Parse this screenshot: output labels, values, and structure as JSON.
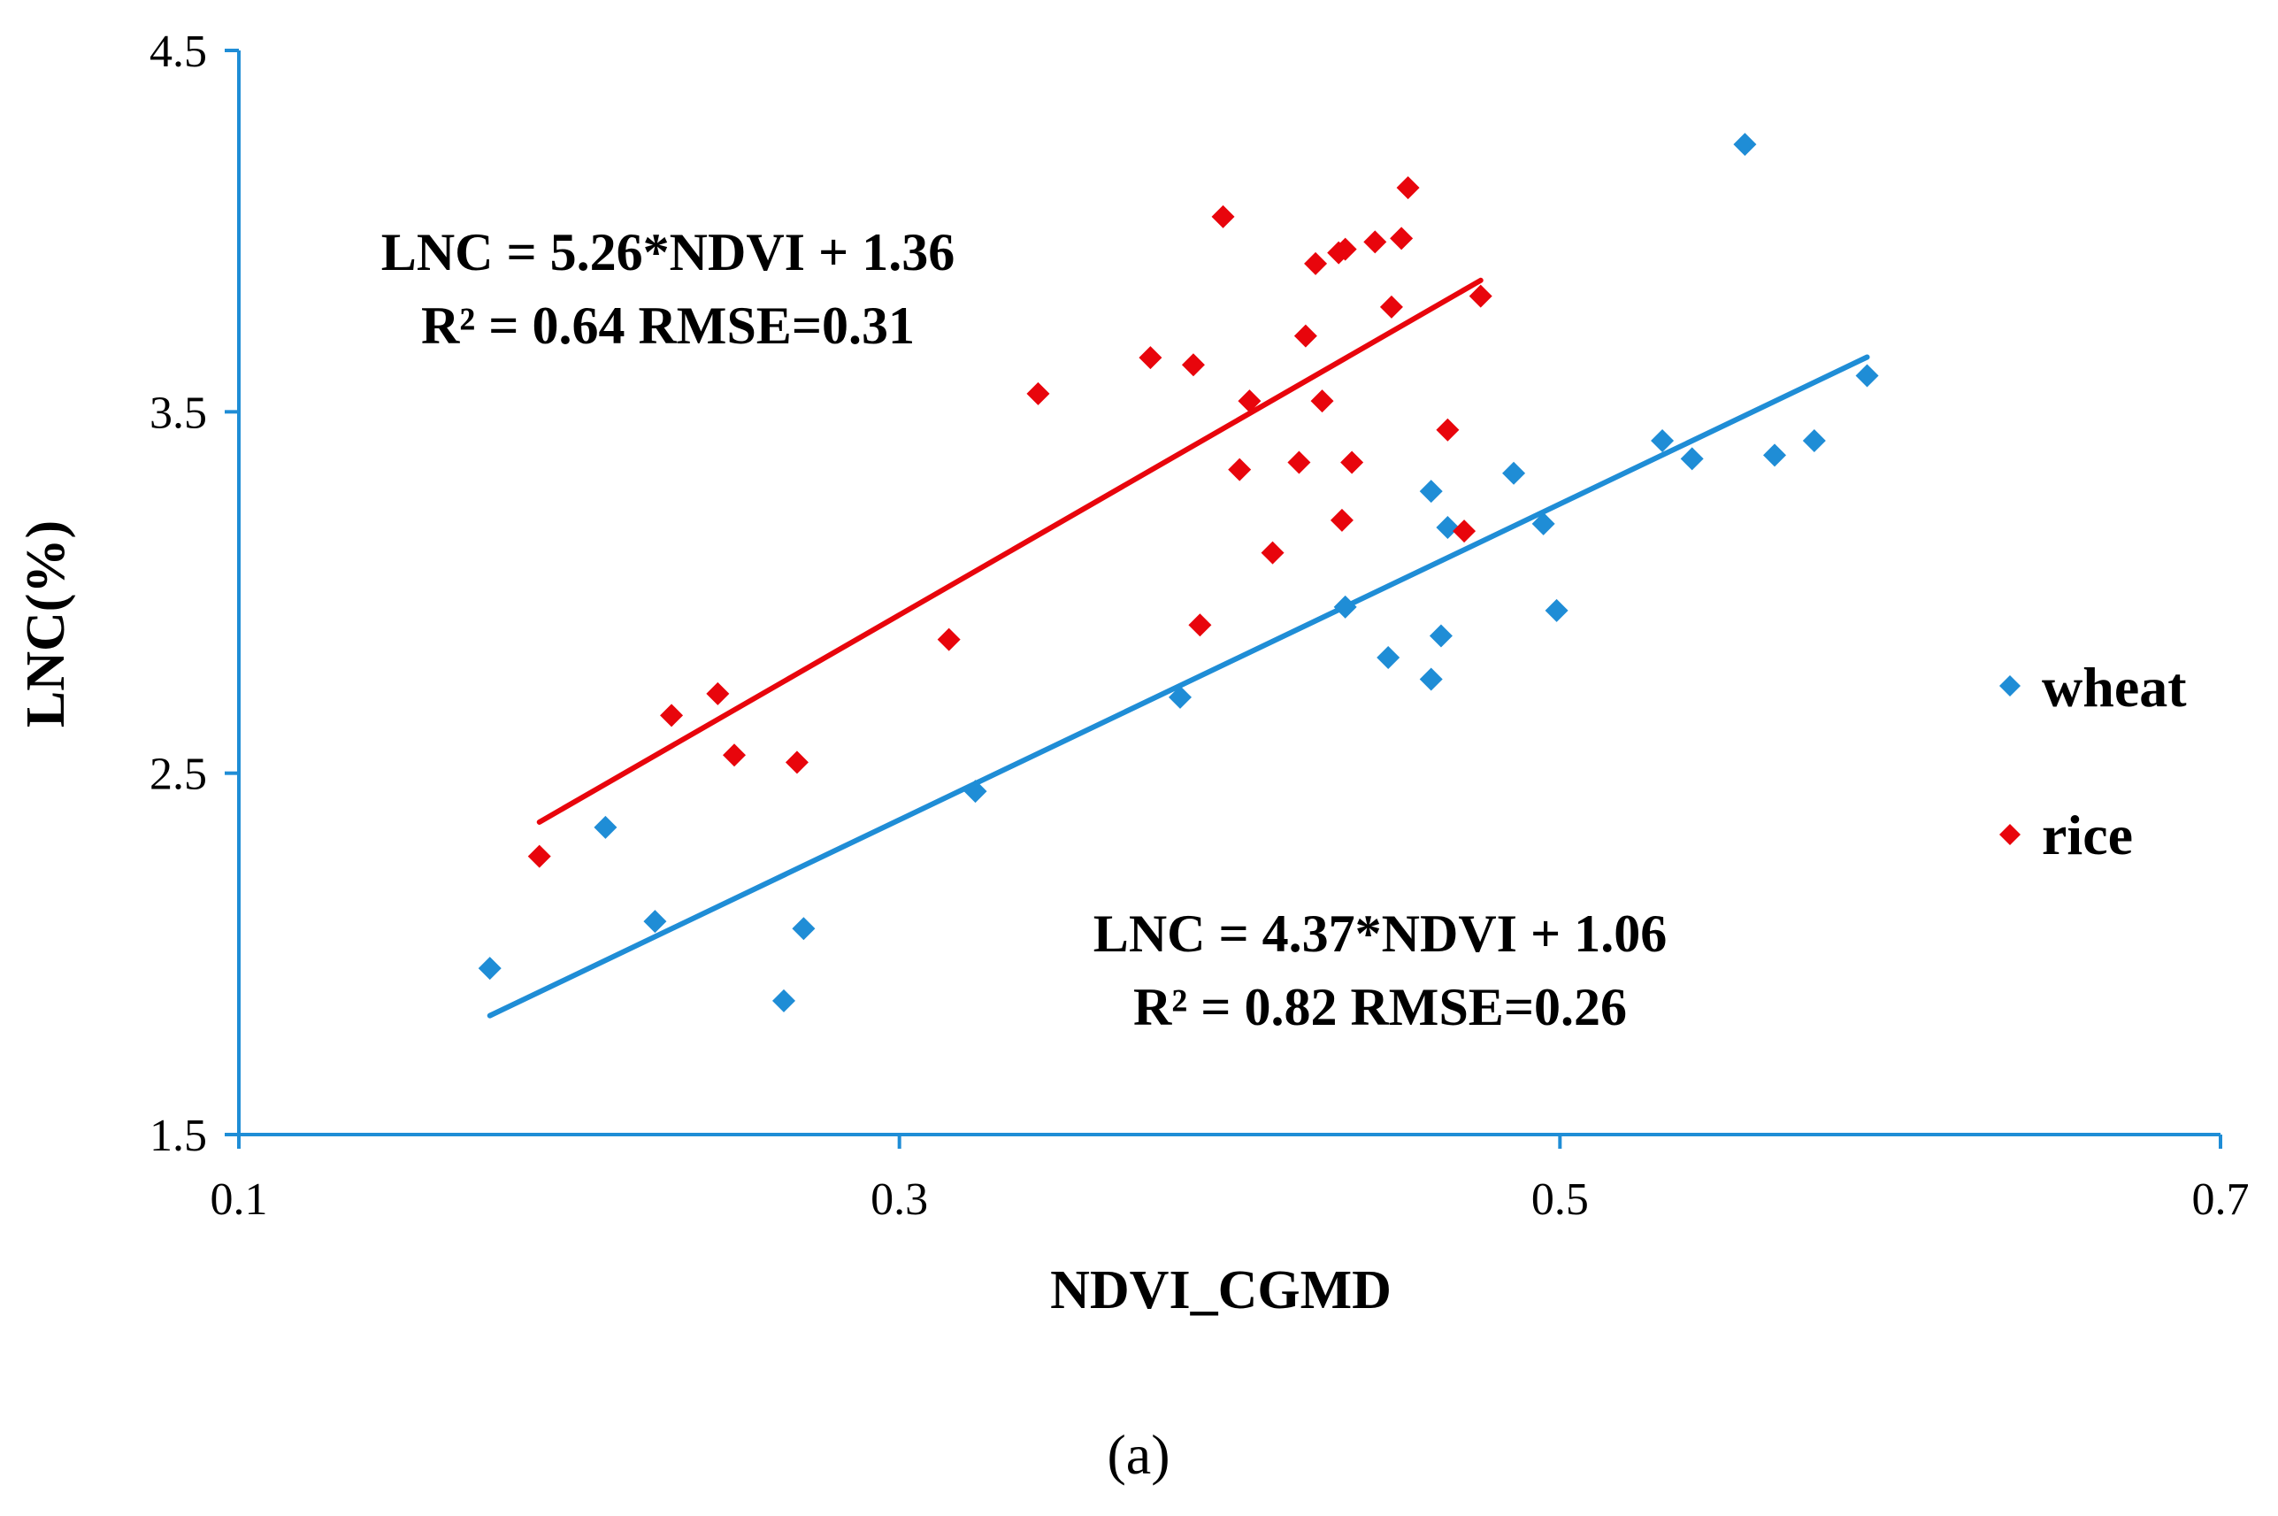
{
  "chart_data": {
    "type": "scatter",
    "panel_label": "(a)",
    "xlabel": "NDVI_CGMD",
    "ylabel": "LNC(%)",
    "xlim": [
      0.1,
      0.7
    ],
    "ylim": [
      1.5,
      4.5
    ],
    "x_ticks": [
      0.1,
      0.3,
      0.5,
      0.7
    ],
    "x_tick_labels": [
      "0.1",
      "0.3",
      "0.5",
      "0.7"
    ],
    "y_ticks": [
      1.5,
      2.5,
      3.5,
      4.5
    ],
    "y_tick_labels": [
      "1.5",
      "2.5",
      "3.5",
      "4.5"
    ],
    "grid": false,
    "legend_position": "right",
    "series": [
      {
        "name": "wheat",
        "color": "#1f8dd6",
        "marker": "diamond",
        "points": [
          [
            0.176,
            1.96
          ],
          [
            0.211,
            2.35
          ],
          [
            0.226,
            2.09
          ],
          [
            0.265,
            1.87
          ],
          [
            0.271,
            2.07
          ],
          [
            0.323,
            2.45
          ],
          [
            0.385,
            2.71
          ],
          [
            0.435,
            2.96
          ],
          [
            0.448,
            2.82
          ],
          [
            0.461,
            2.76
          ],
          [
            0.464,
            2.88
          ],
          [
            0.461,
            3.28
          ],
          [
            0.466,
            3.18
          ],
          [
            0.486,
            3.33
          ],
          [
            0.495,
            3.19
          ],
          [
            0.499,
            2.95
          ],
          [
            0.531,
            3.42
          ],
          [
            0.54,
            3.37
          ],
          [
            0.556,
            4.24
          ],
          [
            0.565,
            3.38
          ],
          [
            0.577,
            3.42
          ],
          [
            0.593,
            3.6
          ]
        ],
        "trendline": {
          "slope": 4.37,
          "intercept": 1.06,
          "x_range": [
            0.176,
            0.593
          ],
          "equation": "LNC = 4.37*NDVI + 1.06",
          "stats": "R² = 0.82  RMSE=0.26"
        }
      },
      {
        "name": "rice",
        "color": "#e8050c",
        "marker": "diamond",
        "points": [
          [
            0.191,
            2.27
          ],
          [
            0.231,
            2.66
          ],
          [
            0.245,
            2.72
          ],
          [
            0.25,
            2.55
          ],
          [
            0.269,
            2.53
          ],
          [
            0.315,
            2.87
          ],
          [
            0.342,
            3.55
          ],
          [
            0.376,
            3.65
          ],
          [
            0.389,
            3.63
          ],
          [
            0.391,
            2.91
          ],
          [
            0.398,
            4.04
          ],
          [
            0.403,
            3.34
          ],
          [
            0.406,
            3.53
          ],
          [
            0.413,
            3.11
          ],
          [
            0.421,
            3.36
          ],
          [
            0.423,
            3.71
          ],
          [
            0.426,
            3.91
          ],
          [
            0.428,
            3.53
          ],
          [
            0.433,
            3.94
          ],
          [
            0.434,
            3.2
          ],
          [
            0.435,
            3.95
          ],
          [
            0.437,
            3.36
          ],
          [
            0.444,
            3.97
          ],
          [
            0.449,
            3.79
          ],
          [
            0.452,
            3.98
          ],
          [
            0.454,
            4.12
          ],
          [
            0.466,
            3.45
          ],
          [
            0.471,
            3.17
          ],
          [
            0.476,
            3.82
          ]
        ],
        "trendline": {
          "slope": 5.26,
          "intercept": 1.36,
          "x_range": [
            0.191,
            0.476
          ],
          "equation": "LNC = 5.26*NDVI + 1.36",
          "stats": "R² = 0.64  RMSE=0.31"
        }
      }
    ]
  }
}
